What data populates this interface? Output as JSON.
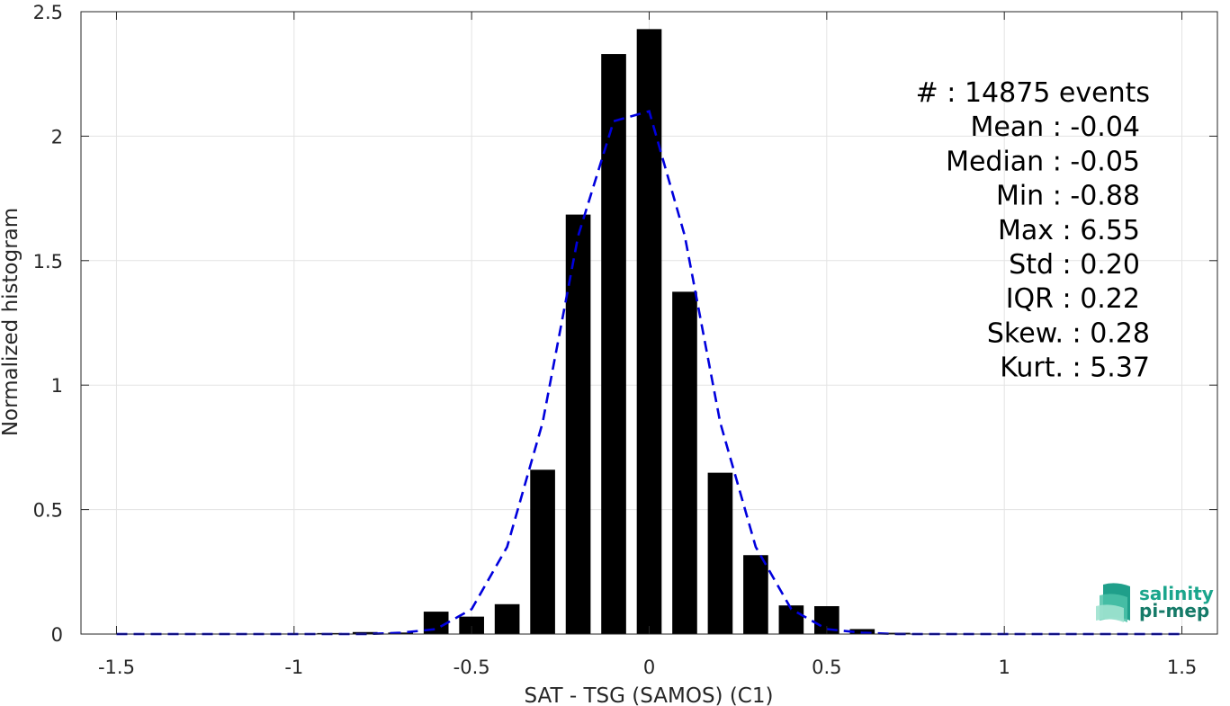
{
  "chart_data": {
    "type": "bar",
    "xlabel": "SAT - TSG (SAMOS) (C1)",
    "ylabel": "Normalized histogram",
    "xlim": [
      -1.6,
      1.6
    ],
    "ylim": [
      0,
      2.5
    ],
    "xticks": [
      -1.5,
      -1,
      -0.5,
      0,
      0.5,
      1,
      1.5
    ],
    "xtick_labels": [
      "-1.5",
      "-1",
      "-0.5",
      "0",
      "0.5",
      "1",
      "1.5"
    ],
    "yticks": [
      0,
      0.5,
      1,
      1.5,
      2,
      2.5
    ],
    "ytick_labels": [
      "0",
      "0.5",
      "1",
      "1.5",
      "2",
      "2.5"
    ],
    "grid": true,
    "bar_width": 0.07,
    "histogram": {
      "x": [
        -1.5,
        -1.4,
        -1.3,
        -1.2,
        -1.1,
        -1.0,
        -0.9,
        -0.8,
        -0.7,
        -0.6,
        -0.5,
        -0.4,
        -0.3,
        -0.2,
        -0.1,
        0.0,
        0.1,
        0.2,
        0.3,
        0.4,
        0.5,
        0.6,
        0.7,
        0.8,
        0.9,
        1.0,
        1.1,
        1.2,
        1.3,
        1.4,
        1.5
      ],
      "values": [
        0,
        0,
        0,
        0,
        0,
        0.002,
        0.004,
        0.008,
        0.006,
        0.09,
        0.07,
        0.12,
        0.66,
        1.685,
        2.33,
        2.43,
        1.375,
        0.648,
        0.317,
        0.115,
        0.112,
        0.02,
        0.005,
        0.002,
        0.001,
        0,
        0,
        0,
        0,
        0,
        0.001
      ],
      "color": "#000000"
    },
    "fit_curve": {
      "x": [
        -1.5,
        -1.4,
        -1.3,
        -1.2,
        -1.1,
        -1.0,
        -0.9,
        -0.8,
        -0.7,
        -0.6,
        -0.5,
        -0.4,
        -0.3,
        -0.2,
        -0.1,
        0.0,
        0.1,
        0.2,
        0.3,
        0.4,
        0.5,
        0.6,
        0.7,
        0.8,
        0.9,
        1.0,
        1.1,
        1.2,
        1.3,
        1.4,
        1.5
      ],
      "values": [
        0,
        0,
        0,
        0,
        0,
        0,
        0,
        0,
        0.005,
        0.02,
        0.1,
        0.35,
        0.85,
        1.6,
        2.06,
        2.1,
        1.6,
        0.85,
        0.35,
        0.1,
        0.02,
        0.005,
        0,
        0,
        0,
        0,
        0,
        0,
        0,
        0,
        0
      ],
      "color": "#0000dd",
      "style": "dashed"
    },
    "stats": [
      "#  : 14875 events",
      "Mean : -0.04",
      "Median : -0.05",
      "Min : -0.88",
      "Max : 6.55",
      "Std : 0.20",
      "IQR : 0.22",
      "Skew. : 0.28",
      "Kurt. : 5.37"
    ]
  },
  "logo": {
    "line1": "salinity",
    "line2": "pi-mep"
  }
}
